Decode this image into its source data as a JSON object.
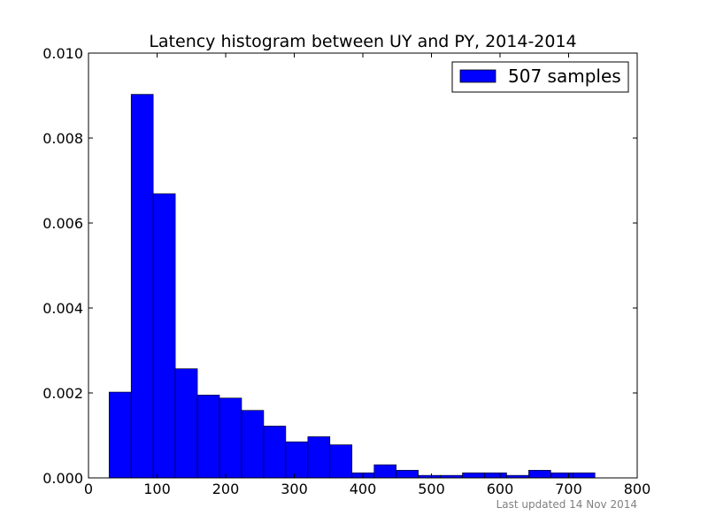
{
  "chart_data": {
    "type": "bar",
    "title": "Latency histogram between UY and PY, 2014-2014",
    "xlabel": "",
    "ylabel": "",
    "xlim": [
      0,
      800
    ],
    "ylim": [
      0,
      0.01
    ],
    "x_ticks": [
      0,
      100,
      200,
      300,
      400,
      500,
      600,
      700,
      800
    ],
    "x_tick_labels": [
      "0",
      "100",
      "200",
      "300",
      "400",
      "500",
      "600",
      "700",
      "800"
    ],
    "y_ticks": [
      0,
      0.002,
      0.004,
      0.006,
      0.008,
      0.01
    ],
    "y_tick_labels": [
      "0.000",
      "0.002",
      "0.004",
      "0.006",
      "0.008",
      "0.010"
    ],
    "grid": false,
    "legend_position": "top-right",
    "series": [
      {
        "name": "507 samples",
        "color": "#0000ff",
        "bin_edges": [
          30,
          62.2,
          94.4,
          126.6,
          158.8,
          191,
          223.2,
          255.4,
          287.6,
          319.8,
          352,
          384.2,
          416.4,
          448.6,
          480.8,
          513,
          545.2,
          577.4,
          609.6,
          641.8,
          674,
          706.2,
          738.4
        ],
        "values": [
          0.00202,
          0.00903,
          0.00669,
          0.00257,
          0.00195,
          0.00188,
          0.00159,
          0.00122,
          0.00085,
          0.00097,
          0.00078,
          0.00012,
          0.00031,
          0.00018,
          6e-05,
          6e-05,
          0.00012,
          0.00012,
          6e-05,
          0.00018,
          0.00012,
          0.00012
        ]
      }
    ]
  },
  "footer": {
    "note": "Last updated 14 Nov 2014"
  }
}
